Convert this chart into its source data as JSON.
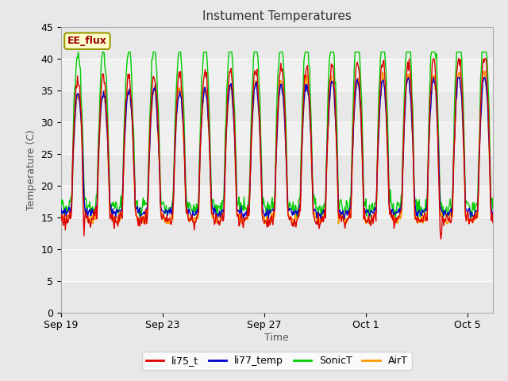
{
  "title": "Instument Temperatures",
  "xlabel": "Time",
  "ylabel": "Temperature (C)",
  "ylim": [
    0,
    45
  ],
  "yticks": [
    0,
    5,
    10,
    15,
    20,
    25,
    30,
    35,
    40,
    45
  ],
  "annotation": "EE_flux",
  "line_colors": {
    "li75_t": "#dd0000",
    "li77_temp": "#0000cc",
    "SonicT": "#00cc00",
    "AirT": "#ff9900"
  },
  "x_tick_labels": [
    "Sep 19",
    "Sep 23",
    "Sep 27",
    "Oct 1",
    "Oct 5"
  ],
  "x_tick_positions": [
    0,
    4,
    8,
    12,
    16
  ],
  "fig_bg": "#e8e8e8",
  "plot_bg": "#f0f0f0",
  "band_light": "#f8f8f8",
  "band_dark": "#dcdcdc"
}
